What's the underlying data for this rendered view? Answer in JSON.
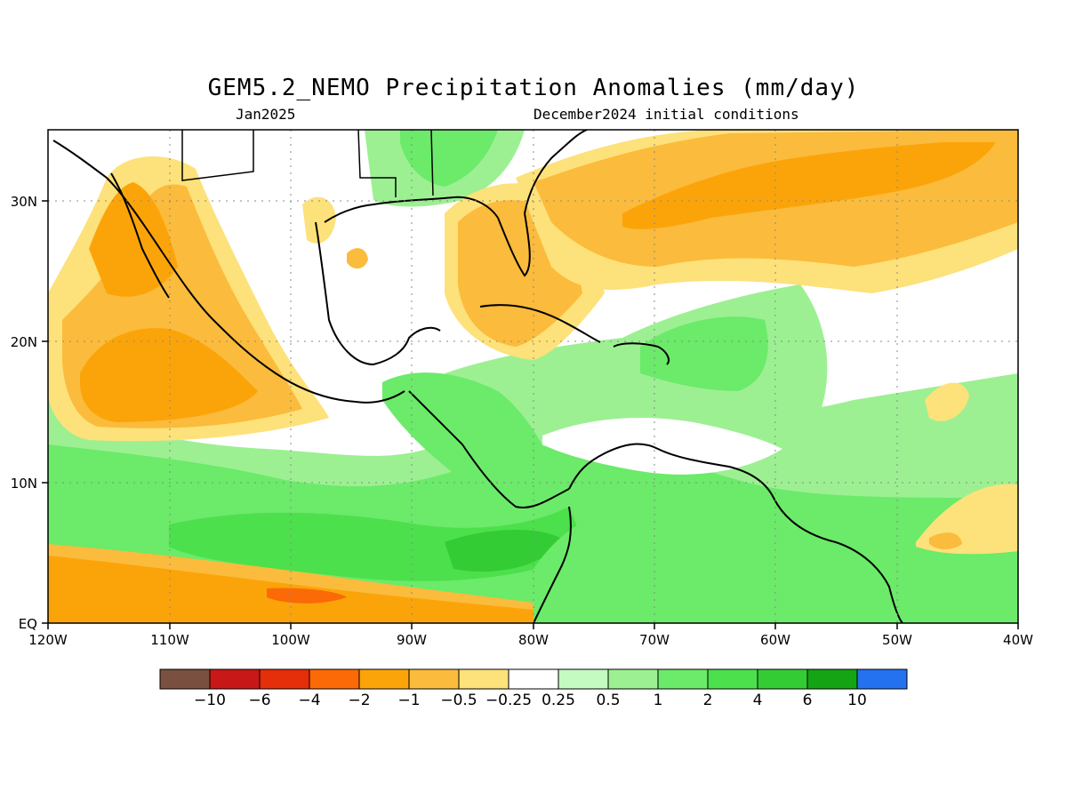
{
  "title": "GEM5.2_NEMO Precipitation Anomalies (mm/day)",
  "subtitle_left": "Jan2025",
  "subtitle_right": "December2024 initial conditions",
  "lon_ticks": [
    "120W",
    "110W",
    "100W",
    "90W",
    "80W",
    "70W",
    "60W",
    "50W",
    "40W"
  ],
  "lat_ticks": [
    "EQ",
    "10N",
    "20N",
    "30N"
  ],
  "colorbar": {
    "colors": [
      "#7a5040",
      "#c81818",
      "#e52e0a",
      "#fb6a06",
      "#fba40a",
      "#fbbb3c",
      "#fde17a",
      "#ffffff",
      "#c4fbc0",
      "#9cf092",
      "#6cea6a",
      "#4ce04c",
      "#34cc34",
      "#14a414",
      "#2472f0"
    ],
    "labels": [
      "−10",
      "−6",
      "−4",
      "−2",
      "−1",
      "−0.5",
      "−0.25",
      "0.25",
      "0.5",
      "1",
      "2",
      "4",
      "6",
      "10"
    ]
  }
}
